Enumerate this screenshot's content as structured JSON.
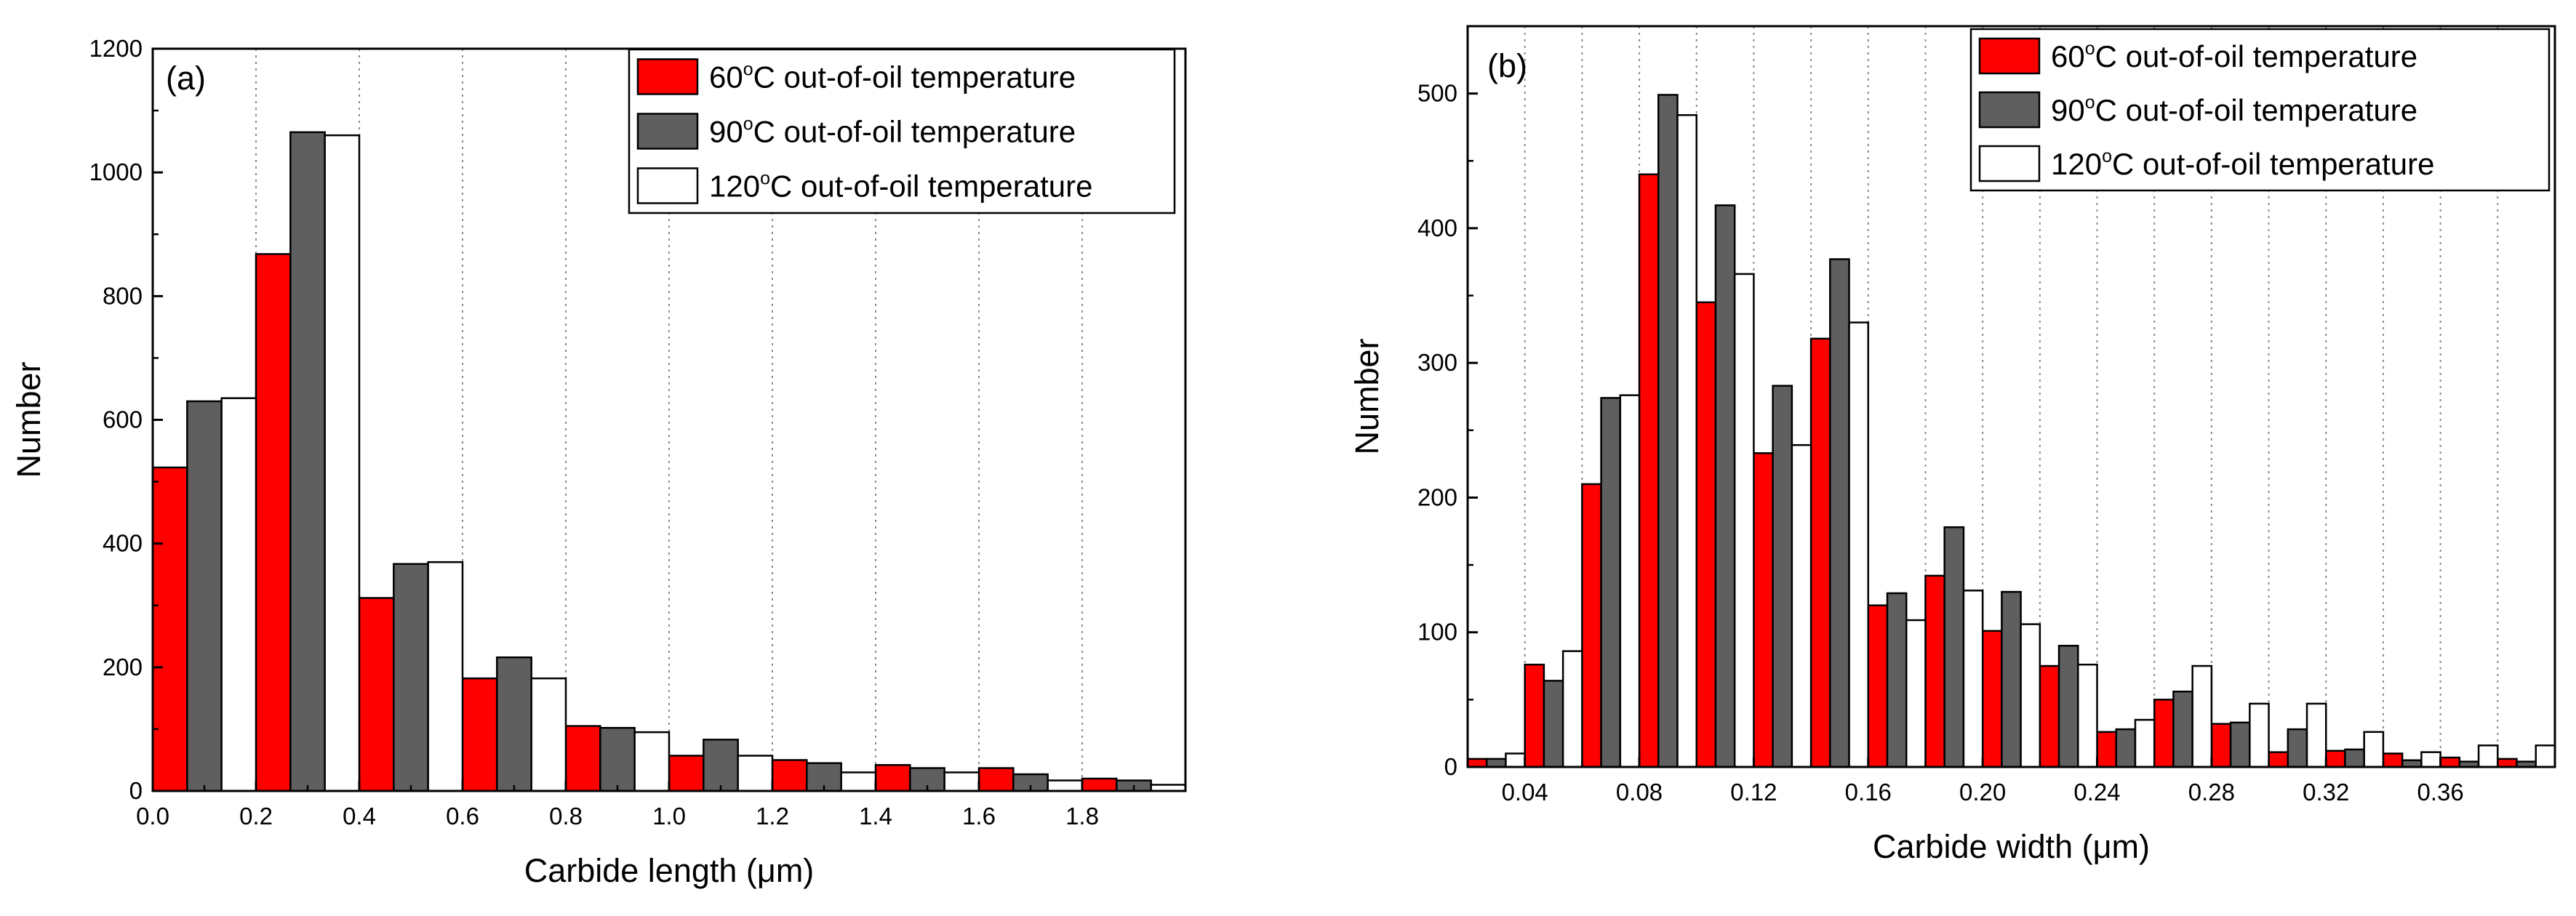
{
  "chart_data": [
    {
      "type": "bar",
      "panel_label": "(a)",
      "xlabel": "Carbide length (μm)",
      "ylabel": "Number",
      "xlim": [
        0,
        2.0
      ],
      "ylim": [
        0,
        1200
      ],
      "grid": "vertical dotted",
      "legend_position": "top-right",
      "xtick_values": [
        0.0,
        0.2,
        0.4,
        0.6,
        0.8,
        1.0,
        1.2,
        1.4,
        1.6,
        1.8
      ],
      "xtick_labels": [
        "0.0",
        "0.2",
        "0.4",
        "0.6",
        "0.8",
        "1.0",
        "1.2",
        "1.4",
        "1.6",
        "1.8"
      ],
      "ytick_values": [
        0,
        200,
        400,
        600,
        800,
        1000,
        1200
      ],
      "ytick_labels": [
        "0",
        "200",
        "400",
        "600",
        "800",
        "1000",
        "1200"
      ],
      "bin_starts": [
        0.0,
        0.2,
        0.4,
        0.6,
        0.8,
        1.0,
        1.2,
        1.4,
        1.6,
        1.8
      ],
      "bin_width": 0.2,
      "series": [
        {
          "name": "60°C out-of-oil temperature",
          "legend_pre": "60",
          "legend_sup": "o",
          "legend_post": "C out-of-oil temperature",
          "color": "#ff0000",
          "values": [
            523,
            868,
            312,
            182,
            105,
            57,
            50,
            42,
            37,
            20
          ]
        },
        {
          "name": "90°C out-of-oil temperature",
          "legend_pre": "90",
          "legend_sup": "o",
          "legend_post": "C out-of-oil temperature",
          "color": "#5f5f5f",
          "values": [
            630,
            1065,
            367,
            216,
            102,
            83,
            45,
            37,
            27,
            17
          ]
        },
        {
          "name": "120°C out-of-oil temperature",
          "legend_pre": "120",
          "legend_sup": "o",
          "legend_post": "C out-of-oil temperature",
          "color": "#ffffff",
          "values": [
            635,
            1060,
            370,
            182,
            95,
            57,
            30,
            30,
            17,
            10
          ]
        }
      ]
    },
    {
      "type": "bar",
      "panel_label": "(b)",
      "xlabel": "Carbide width (μm)",
      "ylabel": "Number",
      "xlim": [
        0.02,
        0.4
      ],
      "ylim": [
        0,
        550
      ],
      "grid": "vertical dotted",
      "legend_position": "top-right",
      "xtick_values": [
        0.04,
        0.08,
        0.12,
        0.16,
        0.2,
        0.24,
        0.28,
        0.32,
        0.36
      ],
      "xtick_labels": [
        "0.04",
        "0.08",
        "0.12",
        "0.16",
        "0.20",
        "0.24",
        "0.28",
        "0.32",
        "0.36"
      ],
      "ytick_values": [
        0,
        100,
        200,
        300,
        400,
        500
      ],
      "ytick_labels": [
        "0",
        "100",
        "200",
        "300",
        "400",
        "500"
      ],
      "bin_starts": [
        0.02,
        0.04,
        0.06,
        0.08,
        0.1,
        0.12,
        0.14,
        0.16,
        0.18,
        0.2,
        0.22,
        0.24,
        0.26,
        0.28,
        0.3,
        0.32,
        0.34,
        0.36,
        0.38
      ],
      "bin_width": 0.02,
      "series": [
        {
          "name": "60°C out-of-oil temperature",
          "legend_pre": "60",
          "legend_sup": "o",
          "legend_post": "C out-of-oil temperature",
          "color": "#ff0000",
          "values": [
            6,
            76,
            210,
            440,
            345,
            233,
            318,
            120,
            142,
            101,
            75,
            26,
            50,
            32,
            11,
            12,
            10,
            7,
            6
          ]
        },
        {
          "name": "90°C out-of-oil temperature",
          "legend_pre": "90",
          "legend_sup": "o",
          "legend_post": "C out-of-oil temperature",
          "color": "#5f5f5f",
          "values": [
            6,
            64,
            274,
            499,
            417,
            283,
            377,
            129,
            178,
            130,
            90,
            28,
            56,
            33,
            28,
            13,
            5,
            4,
            4
          ]
        },
        {
          "name": "120°C out-of-oil temperature",
          "legend_pre": "120",
          "legend_sup": "o",
          "legend_post": "C out-of-oil temperature",
          "color": "#ffffff",
          "values": [
            10,
            86,
            276,
            484,
            366,
            239,
            330,
            109,
            131,
            106,
            76,
            35,
            75,
            47,
            47,
            26,
            11,
            16,
            16
          ]
        }
      ]
    }
  ]
}
